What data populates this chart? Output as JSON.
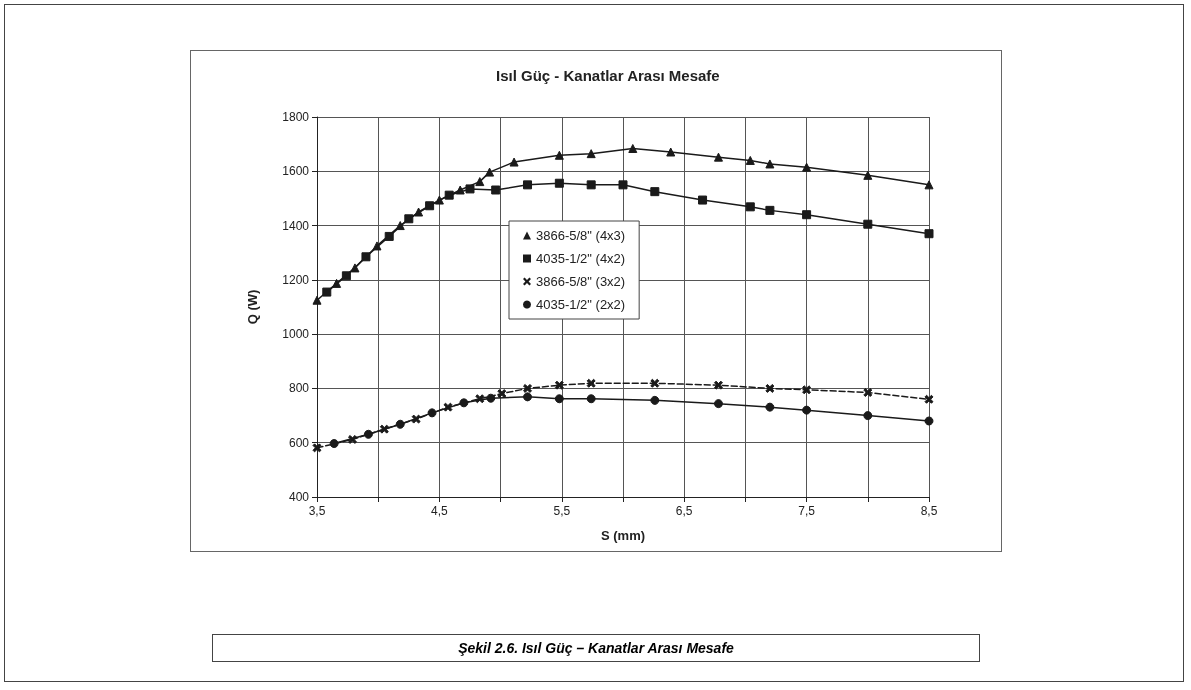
{
  "chart_data": {
    "type": "line",
    "title": "Isıl Güç - Kanatlar Arası Mesafe",
    "xlabel": "S (mm)",
    "ylabel": "Q (W)",
    "annotations": [
      "Şekil 2.6. Isıl Güç – Kanatlar Arası Mesafe"
    ],
    "xlim": [
      3.5,
      8.5
    ],
    "xticks": [
      {
        "value": 3.5,
        "label": "3,5"
      },
      {
        "value": 4,
        "label": null
      },
      {
        "value": 4.5,
        "label": "4,5"
      },
      {
        "value": 5,
        "label": null
      },
      {
        "value": 5.5,
        "label": "5,5"
      },
      {
        "value": 6,
        "label": null
      },
      {
        "value": 6.5,
        "label": "6,5"
      },
      {
        "value": 7,
        "label": null
      },
      {
        "value": 7.5,
        "label": "7,5"
      },
      {
        "value": 8,
        "label": null
      },
      {
        "value": 8.5,
        "label": "8,5"
      }
    ],
    "ylim": [
      400,
      1800
    ],
    "yticks": [
      400,
      600,
      800,
      1000,
      1200,
      1400,
      1600,
      1800
    ],
    "grid": true,
    "legend": "center",
    "series": [
      {
        "name": "3866-5/8\" (4x3)",
        "color": "#1a1a1a",
        "marker": "triangle",
        "line_style": "solid",
        "x": [
          3.5,
          3.66,
          3.81,
          3.99,
          4.18,
          4.33,
          4.5,
          4.67,
          4.83,
          4.91,
          5.11,
          5.48,
          5.74,
          6.08,
          6.39,
          6.78,
          7.04,
          7.2,
          7.5,
          8.0,
          8.5
        ],
        "values": [
          1125,
          1187,
          1244,
          1325,
          1400,
          1450,
          1494,
          1531,
          1562,
          1597,
          1634,
          1659,
          1665,
          1684,
          1671,
          1652,
          1640,
          1627,
          1615,
          1585,
          1550
        ]
      },
      {
        "name": "4035-1/2\" (4x2)",
        "color": "#1a1a1a",
        "marker": "square",
        "line_style": "solid",
        "x": [
          3.58,
          3.74,
          3.9,
          4.09,
          4.25,
          4.42,
          4.58,
          4.75,
          4.96,
          5.22,
          5.48,
          5.74,
          6.0,
          6.26,
          6.65,
          7.04,
          7.2,
          7.5,
          8.0,
          8.5
        ],
        "values": [
          1155,
          1215,
          1285,
          1360,
          1425,
          1473,
          1512,
          1535,
          1531,
          1550,
          1556,
          1550,
          1550,
          1525,
          1494,
          1469,
          1456,
          1440,
          1405,
          1370
        ]
      },
      {
        "name": "3866-5/8\" (3x2)",
        "color": "#1a1a1a",
        "marker": "cross",
        "line_style": "dashed",
        "x": [
          3.5,
          3.79,
          4.05,
          4.31,
          4.57,
          4.83,
          5.01,
          5.22,
          5.48,
          5.74,
          6.26,
          6.78,
          7.2,
          7.5,
          8.0,
          8.5
        ],
        "values": [
          581,
          612,
          650,
          687,
          731,
          762,
          781,
          800,
          812,
          819,
          819,
          812,
          800,
          795,
          785,
          760
        ]
      },
      {
        "name": "4035-1/2\" (2x2)",
        "color": "#1a1a1a",
        "marker": "circle",
        "line_style": "solid",
        "x": [
          3.64,
          3.92,
          4.18,
          4.44,
          4.7,
          4.92,
          5.22,
          5.48,
          5.74,
          6.26,
          6.78,
          7.2,
          7.5,
          8.0,
          8.5
        ],
        "values": [
          597,
          631,
          668,
          710,
          747,
          764,
          769,
          762,
          762,
          756,
          744,
          731,
          720,
          700,
          680
        ]
      }
    ]
  }
}
